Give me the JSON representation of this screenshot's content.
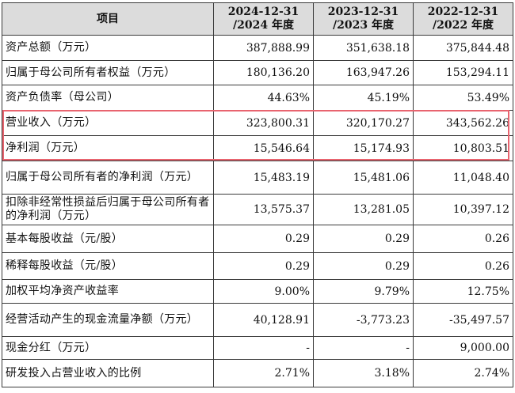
{
  "header": {
    "item": "项目",
    "col1": [
      "2024-12-31",
      "/2024 年度"
    ],
    "col2": [
      "2023-12-31",
      "/2023 年度"
    ],
    "col3": [
      "2022-12-31",
      "/2022 年度"
    ]
  },
  "rows": [
    {
      "label": "资产总额（万元）",
      "v2024": "387,888.99",
      "v2023": "351,638.18",
      "v2022": "375,844.48"
    },
    {
      "label": "归属于母公司所有者权益（万元）",
      "v2024": "180,136.20",
      "v2023": "163,947.26",
      "v2022": "153,294.11"
    },
    {
      "label": "资产负债率（母公司）",
      "v2024": "44.63%",
      "v2023": "45.19%",
      "v2022": "53.49%"
    },
    {
      "label": "营业收入（万元）",
      "v2024": "323,800.31",
      "v2023": "320,170.27",
      "v2022": "343,562.26"
    },
    {
      "label": "净利润（万元）",
      "v2024": "15,546.64",
      "v2023": "15,174.93",
      "v2022": "10,803.51"
    },
    {
      "label": "归属于母公司所有者的净利润（万元）",
      "v2024": "15,483.19",
      "v2023": "15,481.06",
      "v2022": "11,048.40"
    },
    {
      "label": "扣除非经常性损益后归属于母公司所有者的净利润（万元）",
      "v2024": "13,575.37",
      "v2023": "13,281.05",
      "v2022": "10,397.12"
    },
    {
      "label": "基本每股收益（元/股）",
      "v2024": "0.29",
      "v2023": "0.29",
      "v2022": "0.26"
    },
    {
      "label": "稀释每股收益（元/股）",
      "v2024": "0.29",
      "v2023": "0.29",
      "v2022": "0.26"
    },
    {
      "label": "加权平均净资产收益率",
      "v2024": "9.00%",
      "v2023": "9.79%",
      "v2022": "12.75%"
    },
    {
      "label": "经营活动产生的现金流量净额（万元）",
      "v2024": "40,128.91",
      "v2023": "-3,773.23",
      "v2022": "-35,497.57"
    },
    {
      "label": "现金分红（万元）",
      "v2024": "-",
      "v2023": "-",
      "v2022": "9,000.00"
    },
    {
      "label": "研发投入占营业收入的比例",
      "v2024": "2.71%",
      "v2023": "3.18%",
      "v2022": "2.74%"
    }
  ],
  "highlight_color": "#e8646f"
}
